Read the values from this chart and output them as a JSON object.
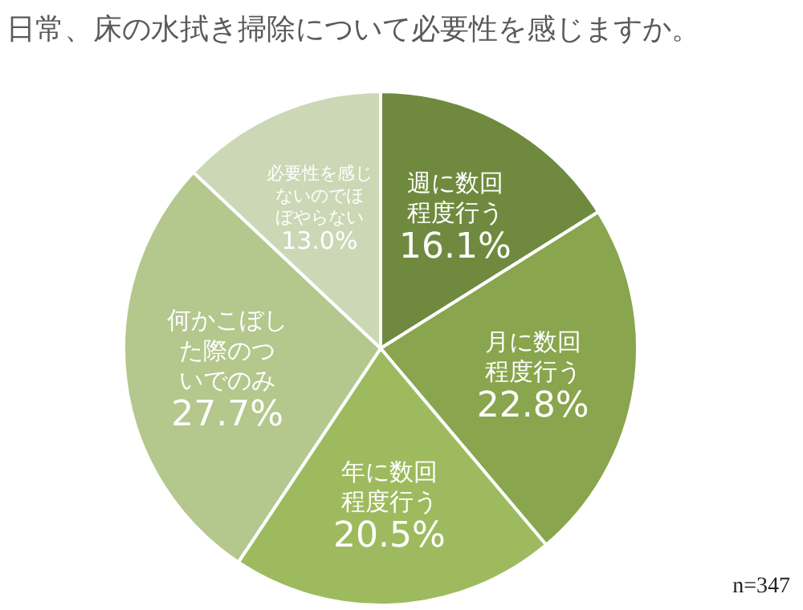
{
  "chart_data": {
    "type": "pie",
    "title": "日常、床の水拭き掃除について必要性を感じますか。",
    "categories": [
      "週に数回程度行う",
      "月に数回程度行う",
      "年に数回程度行う",
      "何かこぼした際のついでのみ",
      "必要性を感じないのでほぼやらない"
    ],
    "values": [
      16.1,
      22.8,
      20.5,
      27.7,
      13.0
    ],
    "value_labels": [
      "16.1%",
      "22.8%",
      "20.5%",
      "27.7%",
      "13.0%"
    ],
    "colors": [
      "#6f8a3e",
      "#89a54d",
      "#9dbb5e",
      "#b4c78d",
      "#ccd7b5"
    ],
    "annotations": [
      "n=347"
    ]
  }
}
